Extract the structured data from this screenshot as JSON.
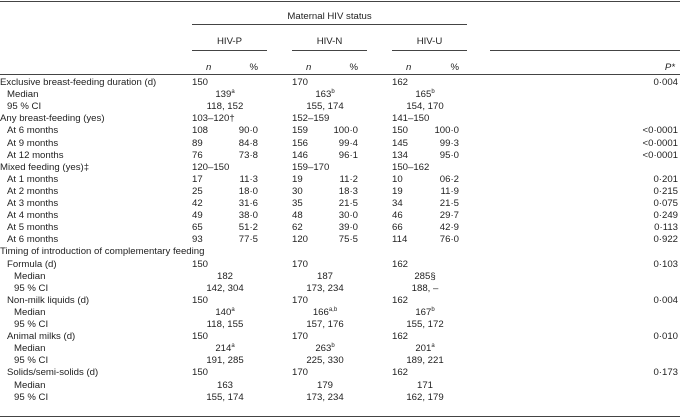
{
  "header": {
    "group_title": "Maternal HIV status",
    "groups": [
      "HIV-P",
      "HIV-N",
      "HIV-U"
    ],
    "n_label": "n",
    "pct_label": "%",
    "p_label": "P*"
  },
  "rows": [
    {
      "label": "Exclusive breast-feeding duration (d)",
      "level": 0,
      "type": "n",
      "cells": [
        "150",
        "",
        "170",
        "",
        "162",
        ""
      ],
      "p": "0·004"
    },
    {
      "label": "Median",
      "level": 1,
      "type": "c",
      "cells": [
        "139",
        "163",
        "165"
      ],
      "sups": [
        "a",
        "b",
        "b"
      ],
      "p": ""
    },
    {
      "label": "95 % CI",
      "level": 1,
      "type": "c",
      "cells": [
        "118, 152",
        "155, 174",
        "154, 170"
      ],
      "sups": [
        "",
        "",
        ""
      ],
      "p": ""
    },
    {
      "label": "Any breast-feeding (yes)",
      "level": 0,
      "type": "n",
      "cells": [
        "103–120†",
        "",
        "152–159",
        "",
        "141–150",
        ""
      ],
      "p": ""
    },
    {
      "label": "At 6 months",
      "level": 1,
      "type": "n",
      "cells": [
        "108",
        "90·0",
        "159",
        "100·0",
        "150",
        "100·0"
      ],
      "p": "<0·0001"
    },
    {
      "label": "At 9 months",
      "level": 1,
      "type": "n",
      "cells": [
        "89",
        "84·8",
        "156",
        "99·4",
        "145",
        "99·3"
      ],
      "p": "<0·0001"
    },
    {
      "label": "At 12 months",
      "level": 1,
      "type": "n",
      "cells": [
        "76",
        "73·8",
        "146",
        "96·1",
        "134",
        "95·0"
      ],
      "p": "<0·0001"
    },
    {
      "label": "Mixed feeding (yes)‡",
      "level": 0,
      "type": "n",
      "cells": [
        "120–150",
        "",
        "159–170",
        "",
        "150–162",
        ""
      ],
      "p": ""
    },
    {
      "label": "At 1 months",
      "level": 1,
      "type": "n",
      "cells": [
        "17",
        "11·3",
        "19",
        "11·2",
        "10",
        "06·2"
      ],
      "p": "0·201"
    },
    {
      "label": "At 2 months",
      "level": 1,
      "type": "n",
      "cells": [
        "25",
        "18·0",
        "30",
        "18·3",
        "19",
        "11·9"
      ],
      "p": "0·215"
    },
    {
      "label": "At 3 months",
      "level": 1,
      "type": "n",
      "cells": [
        "42",
        "31·6",
        "35",
        "21·5",
        "34",
        "21·5"
      ],
      "p": "0·075"
    },
    {
      "label": "At 4 months",
      "level": 1,
      "type": "n",
      "cells": [
        "49",
        "38·0",
        "48",
        "30·0",
        "46",
        "29·7"
      ],
      "p": "0·249"
    },
    {
      "label": "At 5 months",
      "level": 1,
      "type": "n",
      "cells": [
        "65",
        "51·2",
        "62",
        "39·0",
        "66",
        "42·9"
      ],
      "p": "0·113"
    },
    {
      "label": "At 6 months",
      "level": 1,
      "type": "n",
      "cells": [
        "93",
        "77·5",
        "120",
        "75·5",
        "114",
        "76·0"
      ],
      "p": "0·922"
    },
    {
      "label": "Timing of introduction of complementary feeding",
      "level": 0,
      "type": "n",
      "cells": [
        "",
        "",
        "",
        "",
        "",
        ""
      ],
      "p": ""
    },
    {
      "label": "Formula (d)",
      "level": 1,
      "type": "n",
      "cells": [
        "150",
        "",
        "170",
        "",
        "162",
        ""
      ],
      "p": "0·103"
    },
    {
      "label": "Median",
      "level": 2,
      "type": "c",
      "cells": [
        "182",
        "187",
        "285§"
      ],
      "sups": [
        "",
        "",
        ""
      ],
      "p": ""
    },
    {
      "label": "95 % CI",
      "level": 2,
      "type": "c",
      "cells": [
        "142, 304",
        "173, 234",
        "188, –"
      ],
      "sups": [
        "",
        "",
        ""
      ],
      "p": ""
    },
    {
      "label": "Non-milk liquids (d)",
      "level": 1,
      "type": "n",
      "cells": [
        "150",
        "",
        "170",
        "",
        "162",
        ""
      ],
      "p": "0·004"
    },
    {
      "label": "Median",
      "level": 2,
      "type": "c",
      "cells": [
        "140",
        "166",
        "167"
      ],
      "sups": [
        "a",
        "a,b",
        "b"
      ],
      "p": ""
    },
    {
      "label": "95 % CI",
      "level": 2,
      "type": "c",
      "cells": [
        "118, 155",
        "157, 176",
        "155, 172"
      ],
      "sups": [
        "",
        "",
        ""
      ],
      "p": ""
    },
    {
      "label": "Animal milks (d)",
      "level": 1,
      "type": "n",
      "cells": [
        "150",
        "",
        "170",
        "",
        "162",
        ""
      ],
      "p": "0·010"
    },
    {
      "label": "Median",
      "level": 2,
      "type": "c",
      "cells": [
        "214",
        "263",
        "201"
      ],
      "sups": [
        "a",
        "b",
        "a"
      ],
      "p": ""
    },
    {
      "label": "95 % CI",
      "level": 2,
      "type": "c",
      "cells": [
        "191, 285",
        "225, 330",
        "189, 221"
      ],
      "sups": [
        "",
        "",
        ""
      ],
      "p": ""
    },
    {
      "label": "Solids/semi-solids (d)",
      "level": 1,
      "type": "n",
      "cells": [
        "150",
        "",
        "170",
        "",
        "162",
        ""
      ],
      "p": "0·173"
    },
    {
      "label": "Median",
      "level": 2,
      "type": "c",
      "cells": [
        "163",
        "179",
        "171"
      ],
      "sups": [
        "",
        "",
        ""
      ],
      "p": ""
    },
    {
      "label": "95 % CI",
      "level": 2,
      "type": "c",
      "cells": [
        "155, 174",
        "173, 234",
        "162, 179"
      ],
      "sups": [
        "",
        "",
        ""
      ],
      "p": ""
    }
  ]
}
